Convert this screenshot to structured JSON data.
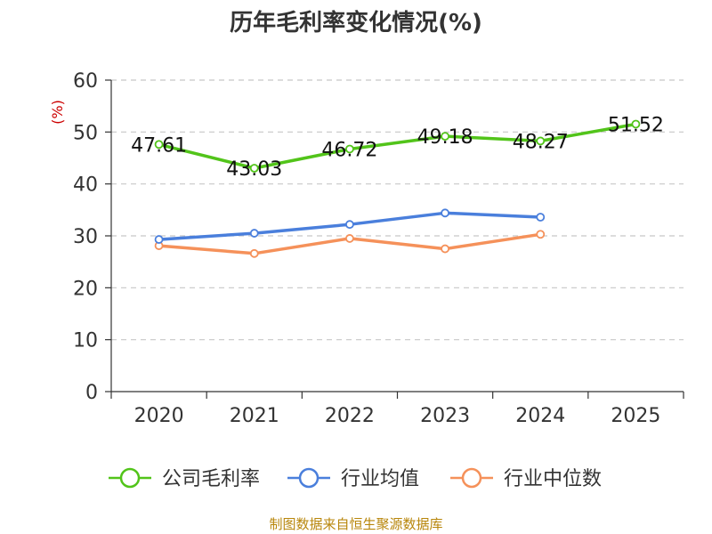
{
  "chart_data": {
    "type": "line",
    "title": "历年毛利率变化情况(%)",
    "ylabel": "(%)",
    "xlabel": "",
    "categories": [
      "2020",
      "2021",
      "2022",
      "2023",
      "2024",
      "2025"
    ],
    "ylim": [
      0,
      60
    ],
    "yticks": [
      0,
      10,
      20,
      30,
      40,
      50,
      60
    ],
    "grid": true,
    "legend_position": "bottom",
    "series": [
      {
        "name": "公司毛利率",
        "color": "#52c41a",
        "values": [
          47.61,
          43.03,
          46.72,
          49.18,
          48.27,
          51.52
        ],
        "labels": [
          "47.61",
          "43.03",
          "46.72",
          "49.18",
          "48.27",
          "51.52"
        ]
      },
      {
        "name": "行业均值",
        "color": "#4a7fdc",
        "values": [
          29.3,
          30.5,
          32.2,
          34.4,
          33.6,
          null
        ]
      },
      {
        "name": "行业中位数",
        "color": "#f5915a",
        "values": [
          28.1,
          26.6,
          29.5,
          27.5,
          30.3,
          null
        ]
      }
    ],
    "source": "制图数据来自恒生聚源数据库"
  }
}
